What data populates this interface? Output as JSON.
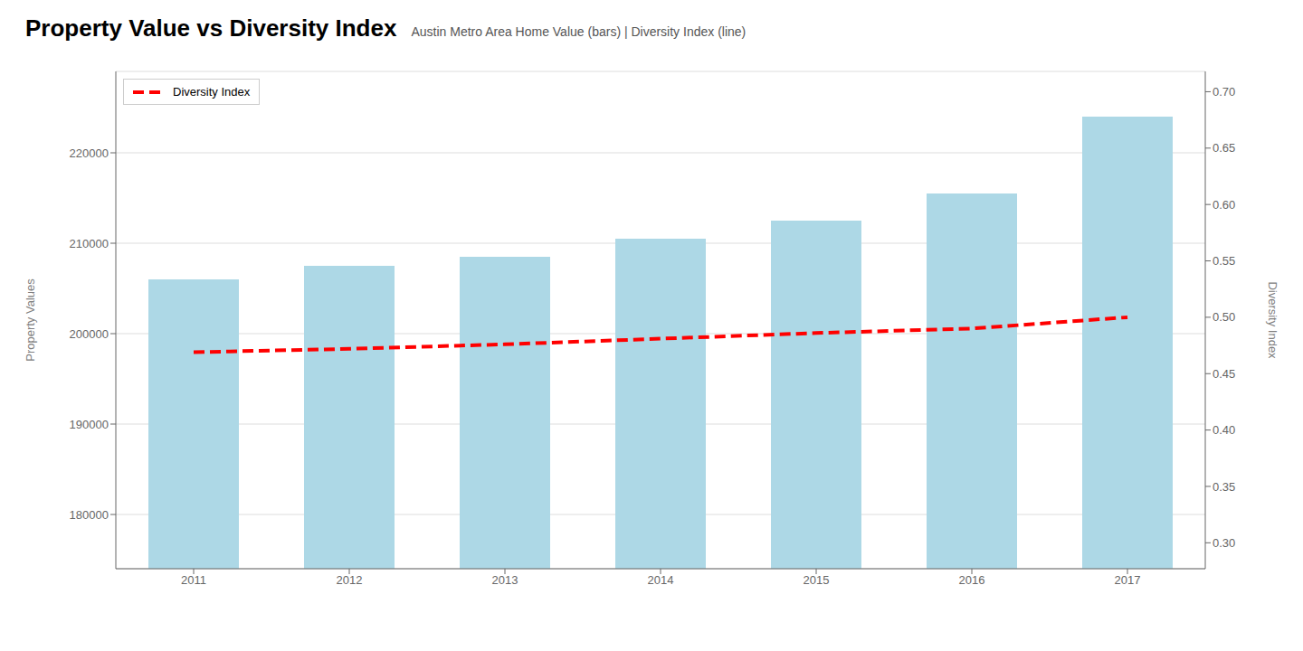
{
  "chart_data": {
    "type": "bar",
    "title": "Property Value vs Diversity Index",
    "subtitle": "Austin Metro Area Home Value (bars) | Diversity Index (line)",
    "categories": [
      "2011",
      "2012",
      "2013",
      "2014",
      "2015",
      "2016",
      "2017"
    ],
    "series": [
      {
        "type": "bar",
        "color": "#ADD8E6",
        "values": [
          206000,
          207500,
          208500,
          210500,
          212500,
          215500,
          224000
        ]
      },
      {
        "name": "Diversity Index",
        "type": "line",
        "color": "#FF0000",
        "line_style": "dashed",
        "axis": "y2",
        "values": [
          0.469,
          0.472,
          0.476,
          0.481,
          0.486,
          0.49,
          0.5
        ]
      }
    ],
    "ylabel": "Property Values",
    "y2label": "Diversity Index",
    "ylim": [
      174000,
      229000
    ],
    "yticks": [
      180000,
      190000,
      200000,
      210000,
      220000
    ],
    "y2lim": [
      0.277,
      0.718
    ],
    "y2ticks": [
      {
        "value": 0.3,
        "label": "0.30"
      },
      {
        "value": 0.35,
        "label": "0.35"
      },
      {
        "value": 0.4,
        "label": "0.40"
      },
      {
        "value": 0.45,
        "label": "0.45"
      },
      {
        "value": 0.5,
        "label": "0.50"
      },
      {
        "value": 0.55,
        "label": "0.55"
      },
      {
        "value": 0.6,
        "label": "0.60"
      },
      {
        "value": 0.65,
        "label": "0.65"
      },
      {
        "value": 0.7,
        "label": "0.70"
      }
    ],
    "grid": true,
    "legend": "upper left"
  }
}
